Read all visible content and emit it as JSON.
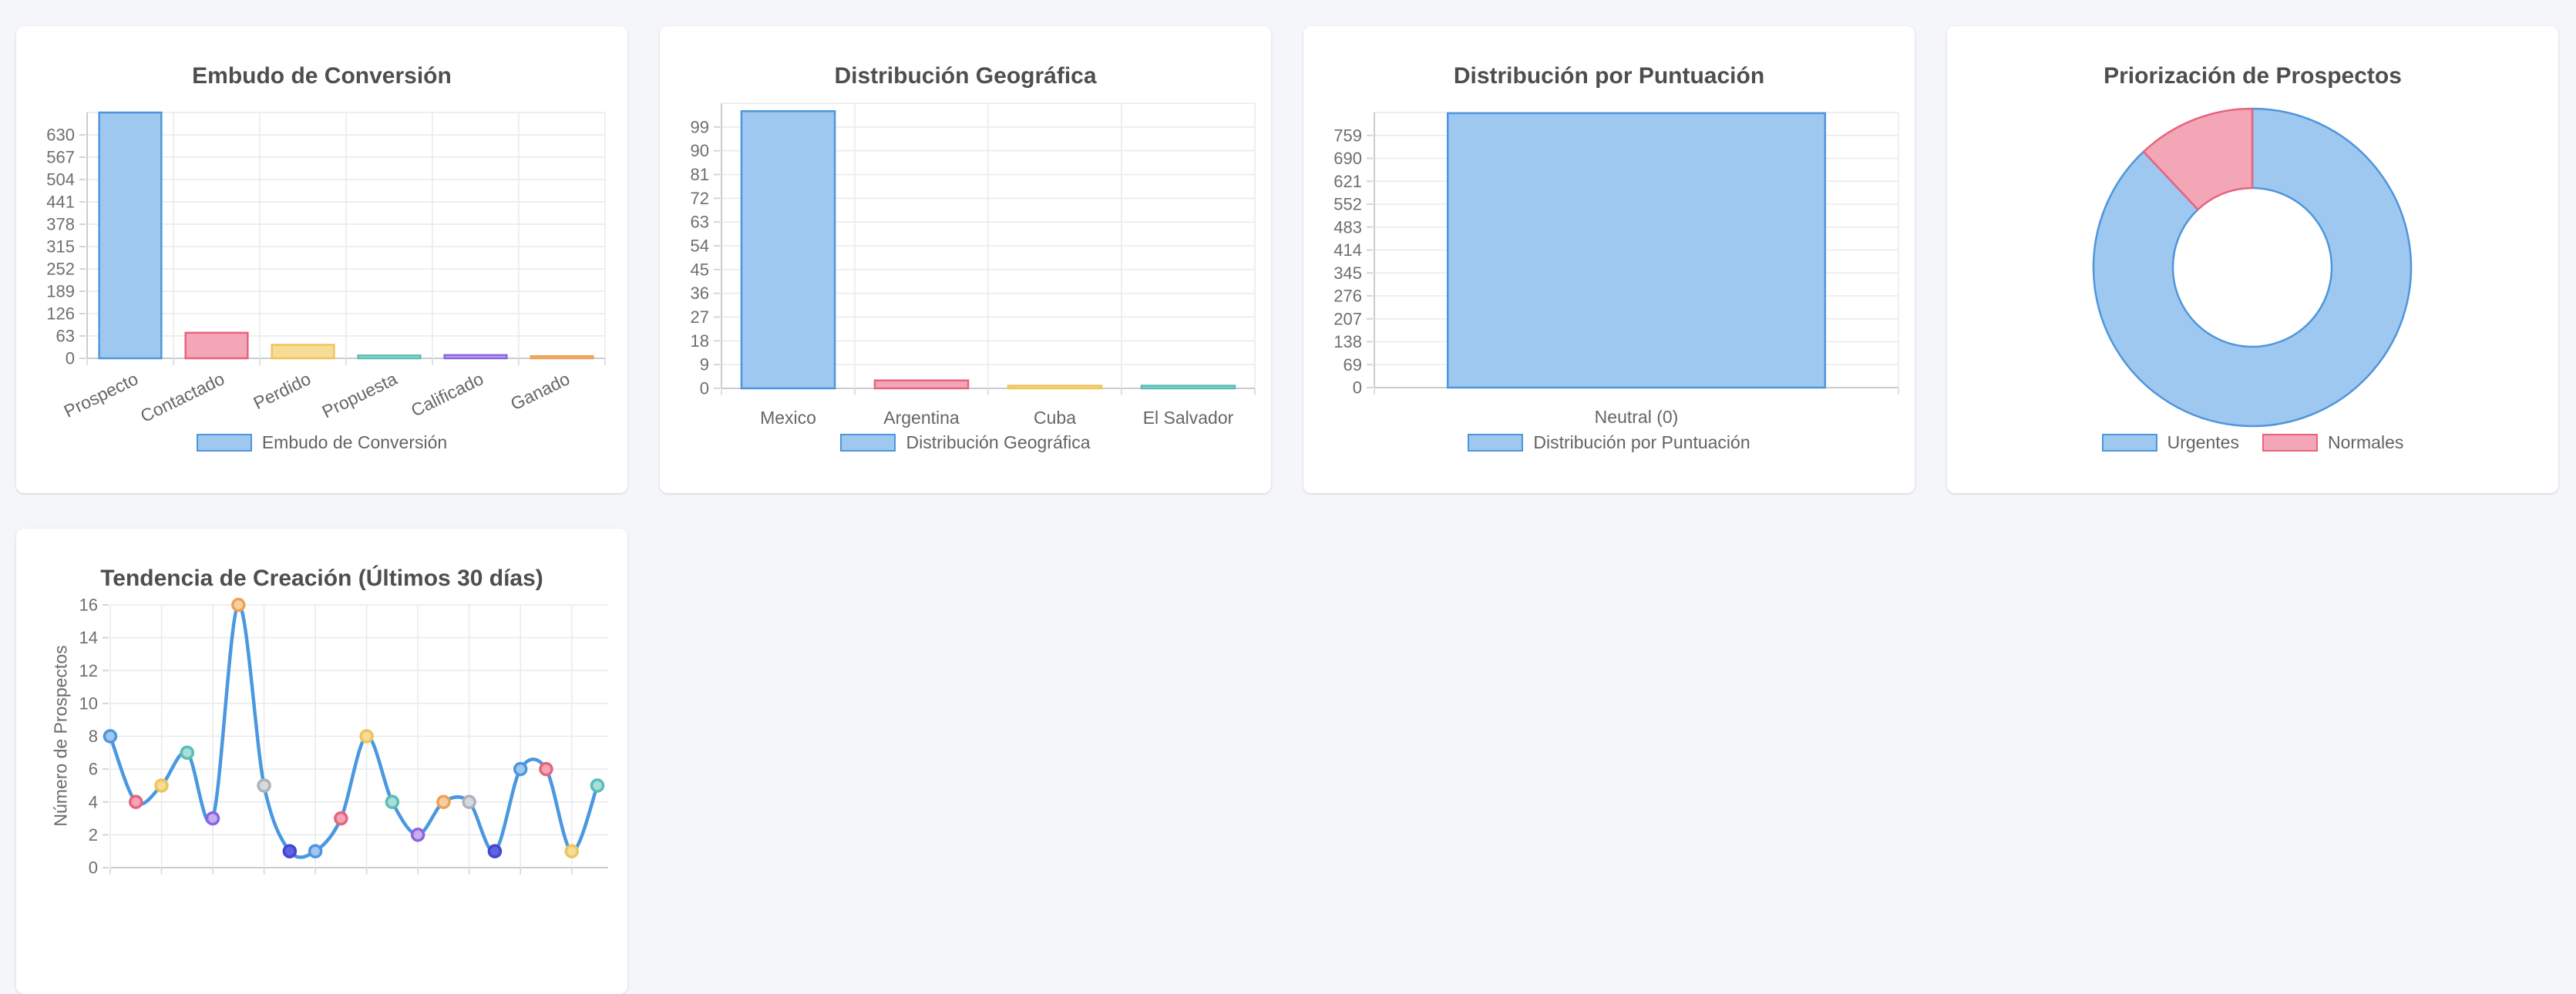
{
  "page": {
    "background": "#f5f6fa",
    "card_background": "#ffffff"
  },
  "palette": {
    "blue": {
      "fill": "#9EC8EF",
      "border": "#4E96DC"
    },
    "red": {
      "fill": "#F3A6B6",
      "border": "#E8637F"
    },
    "yellow": {
      "fill": "#F7DC96",
      "border": "#EEC45C"
    },
    "teal": {
      "fill": "#A9DFD8",
      "border": "#59BEB4"
    },
    "purple": {
      "fill": "#C5ADF0",
      "border": "#8B64E0"
    },
    "orange": {
      "fill": "#F7CF9F",
      "border": "#EEA157"
    },
    "grey": {
      "fill": "#D6DADF",
      "border": "#AEB3BB"
    },
    "indigo": {
      "fill": "#5F63E2",
      "border": "#4347D0"
    }
  },
  "chart_data": [
    {
      "type": "bar",
      "title": "Embudo de Conversión",
      "categories": [
        "Prospecto",
        "Contactado",
        "Perdido",
        "Propuesta",
        "Calificado",
        "Ganado"
      ],
      "values": [
        693,
        72,
        38,
        8,
        9,
        6
      ],
      "bar_colors": [
        "blue",
        "red",
        "yellow",
        "teal",
        "purple",
        "orange"
      ],
      "y_axis": {
        "max": 693,
        "tick_step": 63,
        "ticks": [
          0,
          63,
          126,
          189,
          252,
          315,
          378,
          441,
          504,
          567,
          630
        ]
      },
      "grid": true,
      "legend": {
        "position": "bottom",
        "items": [
          {
            "label": "Embudo de Conversión",
            "color": "blue"
          }
        ]
      }
    },
    {
      "type": "bar",
      "title": "Distribución Geográfica",
      "categories": [
        "Mexico",
        "Argentina",
        "Cuba",
        "El Salvador"
      ],
      "values": [
        105,
        3,
        1,
        1
      ],
      "bar_colors": [
        "blue",
        "red",
        "yellow",
        "teal"
      ],
      "y_axis": {
        "max": 108,
        "tick_step": 9,
        "ticks": [
          0,
          9,
          18,
          27,
          36,
          45,
          54,
          63,
          72,
          81,
          90,
          99
        ]
      },
      "grid": true,
      "legend": {
        "position": "bottom",
        "items": [
          {
            "label": "Distribución Geográfica",
            "color": "blue"
          }
        ]
      }
    },
    {
      "type": "bar",
      "title": "Distribución por Puntuación",
      "categories": [
        "Neutral (0)"
      ],
      "values": [
        826
      ],
      "bar_colors": [
        "blue"
      ],
      "y_axis": {
        "max": 828,
        "tick_step": 69,
        "ticks": [
          0,
          69,
          138,
          207,
          276,
          345,
          414,
          483,
          552,
          621,
          690,
          759
        ]
      },
      "grid": true,
      "legend": {
        "position": "bottom",
        "items": [
          {
            "label": "Distribución por Puntuación",
            "color": "blue"
          }
        ]
      }
    },
    {
      "type": "pie",
      "subtype": "doughnut",
      "title": "Priorización de Prospectos",
      "slices": [
        {
          "label": "Urgentes",
          "color": "blue",
          "percent": 88
        },
        {
          "label": "Normales",
          "color": "red",
          "percent": 12
        }
      ],
      "legend": {
        "position": "bottom",
        "items": [
          {
            "label": "Urgentes",
            "color": "blue"
          },
          {
            "label": "Normales",
            "color": "red"
          }
        ]
      }
    },
    {
      "type": "line",
      "title": "Tendencia de Creación (Últimos 30 días)",
      "ylabel": "Número de Prospectos",
      "values": [
        8,
        4,
        5,
        7,
        3,
        16,
        5,
        1,
        1,
        3,
        8,
        4,
        2,
        4,
        4,
        1,
        6,
        6,
        1,
        5
      ],
      "point_color_cycle": [
        "blue",
        "red",
        "yellow",
        "teal",
        "purple",
        "orange",
        "grey",
        "indigo"
      ],
      "line_color": "#4A98E0",
      "y_axis": {
        "max": 16,
        "tick_step": 2,
        "ticks": [
          0,
          2,
          4,
          6,
          8,
          10,
          12,
          14,
          16
        ]
      },
      "grid": true,
      "x_tick_labels_visible": false
    }
  ]
}
